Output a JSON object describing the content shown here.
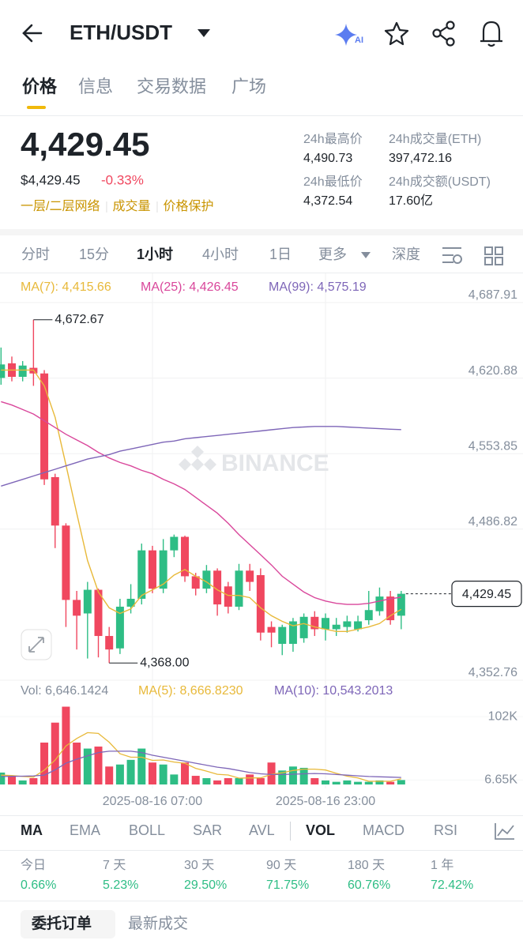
{
  "header": {
    "title": "ETH/USDT"
  },
  "tabs": [
    "价格",
    "信息",
    "交易数据",
    "广场"
  ],
  "price": {
    "last": "4,429.45",
    "usd": "$4,429.45",
    "change": "-0.33%",
    "tags": [
      "一层/二层网络",
      "成交量",
      "价格保护"
    ]
  },
  "stats": [
    {
      "label": "24h最高价",
      "value": "4,490.73"
    },
    {
      "label": "24h成交量(ETH)",
      "value": "397,472.16"
    },
    {
      "label": "24h最低价",
      "value": "4,372.54"
    },
    {
      "label": "24h成交额(USDT)",
      "value": "17.60亿"
    }
  ],
  "intervals": [
    "分时",
    "15分",
    "1小时",
    "4小时",
    "1日",
    "更多",
    "深度"
  ],
  "chart_data": {
    "type": "candlestick",
    "watermark": "BINANCE",
    "up_color": "#2ebd85",
    "down_color": "#f0475f",
    "categories": [
      null,
      null,
      null,
      null,
      null,
      null,
      null,
      null,
      null,
      null,
      null,
      null,
      null,
      null,
      "2025-08-16 07:00",
      null,
      null,
      null,
      null,
      null,
      null,
      null,
      null,
      null,
      null,
      null,
      null,
      null,
      null,
      null,
      "2025-08-16 23:00",
      null,
      null,
      null,
      null,
      null,
      null,
      null
    ],
    "open": [
      4621,
      4634,
      4622,
      4630,
      4625,
      4533,
      4490,
      4424,
      4412,
      4433,
      4392,
      4381,
      4418,
      4425,
      4468,
      4434,
      4468,
      4480,
      4445,
      4434,
      4450,
      4436,
      4418,
      4450,
      4446,
      4400,
      4385,
      4385,
      4390,
      4409,
      4398,
      4398,
      4400,
      4398,
      4406,
      4414,
      4427,
      4410
    ],
    "high": [
      4648,
      4640,
      4636,
      4672.67,
      4628,
      4536,
      4492,
      4432,
      4440,
      4434,
      4400,
      4425,
      4438,
      4474,
      4472,
      4478,
      4482,
      4481,
      4448,
      4455,
      4452,
      4440,
      4456,
      4456,
      4452,
      4405,
      4402,
      4408,
      4412,
      4414,
      4412,
      4408,
      4410,
      4410,
      4432,
      4435,
      4432,
      4432
    ],
    "low": [
      4615,
      4618,
      4618,
      4614,
      4526,
      4470,
      4400,
      4380,
      4372,
      4373,
      4368,
      4376,
      4412,
      4420,
      4430,
      4430,
      4462,
      4440,
      4428,
      4430,
      4410,
      4412,
      4415,
      4432,
      4388,
      4382,
      4375,
      4378,
      4386,
      4392,
      4388,
      4392,
      4395,
      4396,
      4402,
      4410,
      4402,
      4398
    ],
    "close": [
      4633,
      4622,
      4632,
      4625,
      4531,
      4490,
      4424,
      4410,
      4433,
      4392,
      4380,
      4418,
      4425,
      4468,
      4434,
      4468,
      4480,
      4445,
      4434,
      4450,
      4420,
      4418,
      4450,
      4440,
      4395,
      4395,
      4400,
      4405,
      4409,
      4398,
      4408,
      4402,
      4405,
      4405,
      4415,
      4427,
      4406,
      4429.45
    ],
    "series": [
      {
        "name": "MA(7)",
        "legend": "MA(7): 4,415.66",
        "color": "#e8b93a",
        "values": [
          4628,
          4628,
          4628,
          4628,
          4614,
          4586,
          4544,
          4501,
          4459,
          4431,
          4417,
          4412,
          4416,
          4428,
          4433,
          4438,
          4446,
          4451,
          4445,
          4440,
          4433,
          4428,
          4428,
          4426,
          4417,
          4410,
          4405,
          4401,
          4403,
          4400,
          4398,
          4396,
          4396,
          4398,
          4400,
          4403,
          4410,
          4415.66
        ]
      },
      {
        "name": "MA(25)",
        "legend": "MA(25): 4,426.45",
        "color": "#d9479b",
        "values": [
          4600,
          4597,
          4593,
          4589,
          4583,
          4577,
          4571,
          4566,
          4561,
          4555,
          4550,
          4546,
          4543,
          4539,
          4536,
          4531,
          4527,
          4522,
          4515,
          4508,
          4501,
          4492,
          4482,
          4473,
          4464,
          4455,
          4445,
          4438,
          4431,
          4426,
          4423,
          4421,
          4420,
          4420,
          4421,
          4423,
          4425,
          4426.45
        ]
      },
      {
        "name": "MA(99)",
        "legend": "MA(99): 4,575.19",
        "color": "#7e66b8",
        "values": [
          4525,
          4528,
          4531,
          4534,
          4537,
          4540,
          4543,
          4546,
          4549,
          4551,
          4553,
          4556,
          4558,
          4560,
          4562,
          4564,
          4565,
          4567,
          4568,
          4569,
          4570,
          4571,
          4572,
          4573,
          4574,
          4575,
          4576,
          4577,
          4577.5,
          4578,
          4578,
          4578,
          4577.5,
          4577,
          4576.5,
          4576,
          4575.5,
          4575.19
        ]
      }
    ],
    "ylim": [
      4352.76,
      4687.91
    ],
    "yticks": [
      {
        "value": 4352.76,
        "label": "4,352.76"
      },
      {
        "value": 4486.82,
        "label": "4,486.82"
      },
      {
        "value": 4553.85,
        "label": "4,553.85"
      },
      {
        "value": 4620.88,
        "label": "4,620.88"
      },
      {
        "value": 4687.91,
        "label": "4,687.91"
      }
    ],
    "high_label": "4,672.67",
    "low_label": "4,368.00",
    "grid": true,
    "volume": {
      "legend": "Vol: 6,646.1424",
      "values": [
        17900,
        12000,
        6000,
        9500,
        63000,
        93000,
        117000,
        63000,
        54000,
        57000,
        27000,
        30000,
        37000,
        54000,
        33000,
        30000,
        15000,
        33000,
        13000,
        9500,
        6000,
        9500,
        9500,
        15000,
        9500,
        33000,
        21000,
        27000,
        25000,
        9500,
        6000,
        4000,
        6000,
        4000,
        4000,
        6000,
        4000,
        6646.1424
      ],
      "series": [
        {
          "name": "MA(5)",
          "legend": "MA(5): 8,666.8230",
          "color": "#e8b93a",
          "values": [
            14000,
            13500,
            12000,
            11000,
            21680,
            36700,
            57700,
            69100,
            78000,
            76800,
            63600,
            46200,
            41000,
            41000,
            36200,
            36800,
            33800,
            31800,
            24200,
            20100,
            15300,
            14200,
            9500,
            9900,
            9900,
            15300,
            17600,
            21000,
            23000,
            23100,
            21700,
            16700,
            12500,
            9900,
            4800,
            4800,
            4800,
            8666.823
          ]
        },
        {
          "name": "MA(10)",
          "legend": "MA(10): 10,543.2013",
          "color": "#7e66b8",
          "values": [
            12000,
            12200,
            12500,
            13000,
            14000,
            22000,
            32000,
            38000,
            43000,
            48000,
            50000,
            50000,
            50000,
            48000,
            44000,
            41000,
            38000,
            35000,
            32000,
            29000,
            26000,
            24000,
            21000,
            18000,
            16000,
            15000,
            15000,
            15500,
            16000,
            16500,
            16000,
            15000,
            14000,
            13000,
            12000,
            11500,
            11000,
            10543.2013
          ]
        }
      ],
      "ylim": [
        0,
        120000
      ],
      "yticks": [
        {
          "value": 6650,
          "label": "6.65K"
        },
        {
          "value": 102000,
          "label": "102K"
        }
      ]
    }
  },
  "indicators": [
    "MA",
    "EMA",
    "BOLL",
    "SAR",
    "AVL",
    "VOL",
    "MACD",
    "RSI"
  ],
  "performance": [
    {
      "label": "今日",
      "value": "0.66%"
    },
    {
      "label": "7 天",
      "value": "5.23%"
    },
    {
      "label": "30 天",
      "value": "29.50%"
    },
    {
      "label": "90 天",
      "value": "71.75%"
    },
    {
      "label": "180 天",
      "value": "60.76%"
    },
    {
      "label": "1 年",
      "value": "72.42%"
    }
  ],
  "bottom_tabs": [
    "委托订单",
    "最新成交"
  ]
}
